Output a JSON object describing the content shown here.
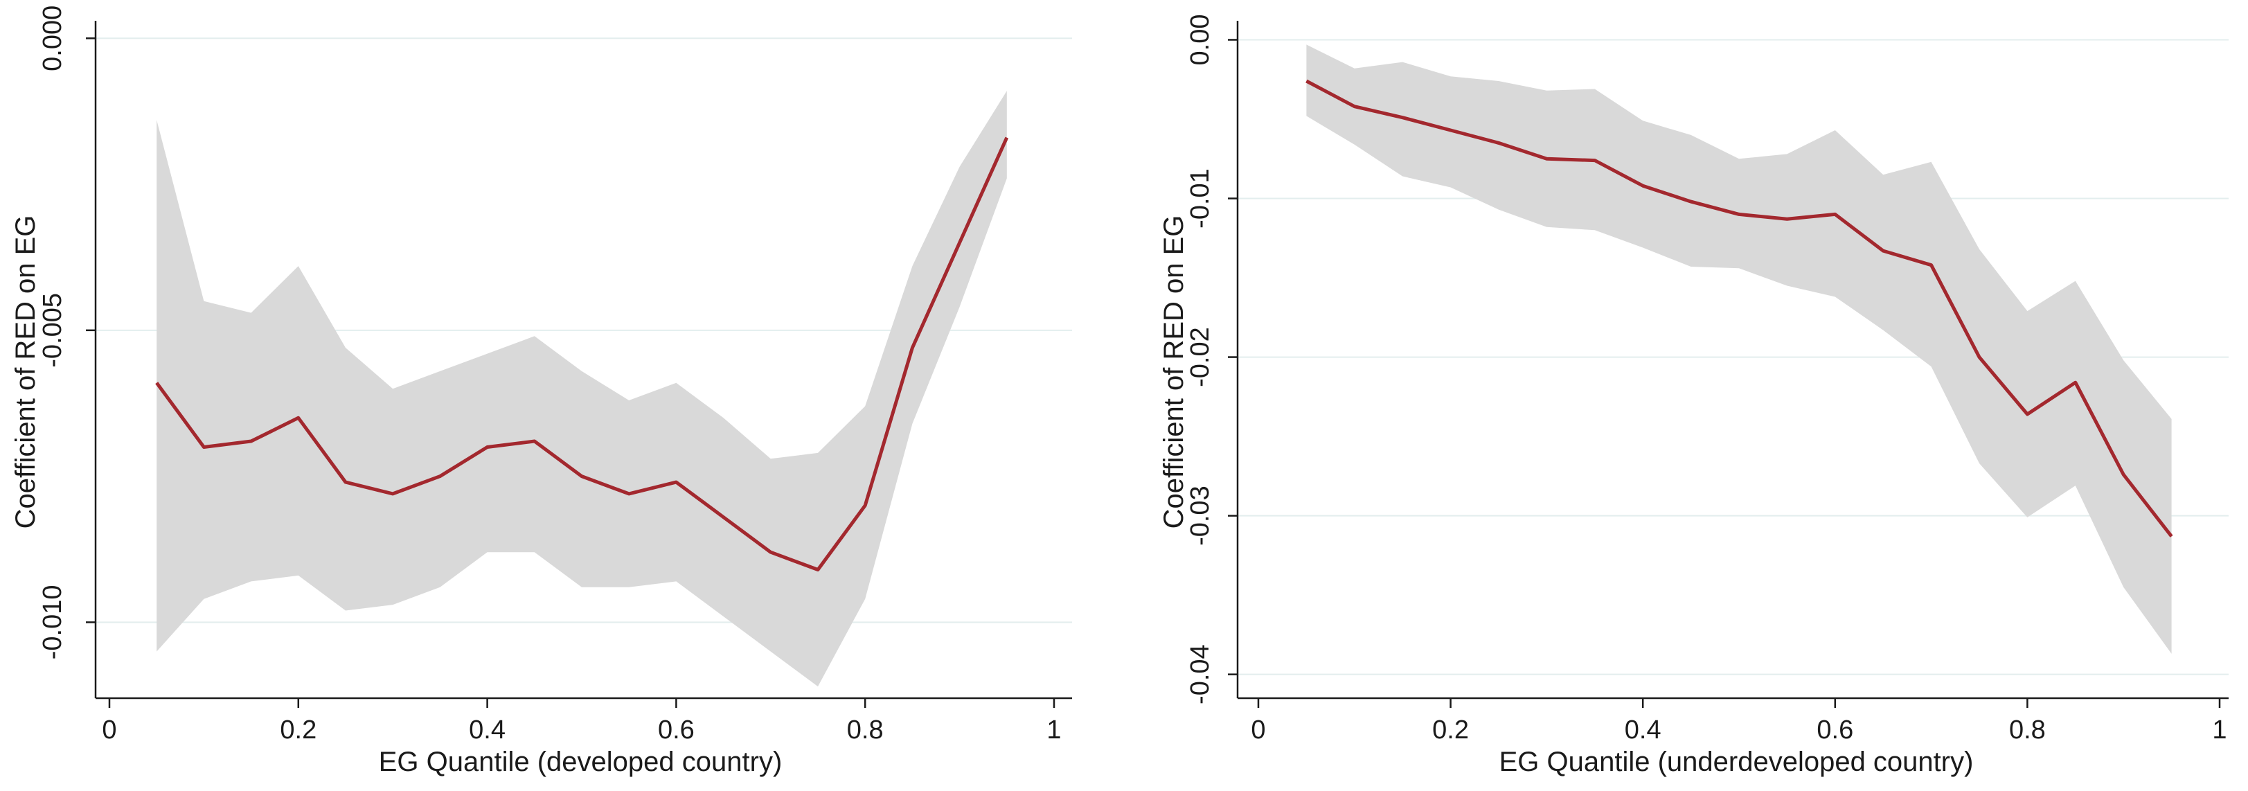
{
  "colors": {
    "line": "#a3282e",
    "band": "#d9d9d9",
    "grid": "#e3eeee",
    "axis": "#1a1a1a"
  },
  "chart_data": [
    {
      "type": "line",
      "title": "",
      "xlabel": "EG Quantile (developed country)",
      "ylabel": "Coefficient of RED on EG",
      "xlim": [
        0,
        1
      ],
      "ylim": [
        -0.0113,
        0.0003
      ],
      "xticks": [
        0,
        0.2,
        0.4,
        0.6,
        0.8,
        1
      ],
      "xtick_labels": [
        "0",
        "0.2",
        "0.4",
        "0.6",
        "0.8",
        "1"
      ],
      "yticks": [
        0,
        -0.005,
        -0.01
      ],
      "ytick_labels": [
        "0.000",
        "-0.005",
        "-0.010"
      ],
      "grid": true,
      "series": [
        {
          "name": "coefficient",
          "x": [
            0.05,
            0.1,
            0.15,
            0.2,
            0.25,
            0.3,
            0.35,
            0.4,
            0.45,
            0.5,
            0.55,
            0.6,
            0.65,
            0.7,
            0.75,
            0.8,
            0.85,
            0.9,
            0.95
          ],
          "values": [
            -0.0059,
            -0.007,
            -0.0069,
            -0.0065,
            -0.0076,
            -0.0078,
            -0.0075,
            -0.007,
            -0.0069,
            -0.0075,
            -0.0078,
            -0.0076,
            -0.0082,
            -0.0088,
            -0.0091,
            -0.008,
            -0.0053,
            -0.0035,
            -0.0017
          ],
          "lower": [
            -0.0105,
            -0.0096,
            -0.0093,
            -0.0092,
            -0.0098,
            -0.0097,
            -0.0094,
            -0.0088,
            -0.0088,
            -0.0094,
            -0.0094,
            -0.0093,
            -0.0099,
            -0.0105,
            -0.0111,
            -0.0096,
            -0.0066,
            -0.0046,
            -0.0024
          ],
          "upper": [
            -0.0014,
            -0.0045,
            -0.0047,
            -0.0039,
            -0.0053,
            -0.006,
            -0.0057,
            -0.0054,
            -0.0051,
            -0.0057,
            -0.0062,
            -0.0059,
            -0.0065,
            -0.0072,
            -0.0071,
            -0.0063,
            -0.0039,
            -0.0022,
            -0.0009
          ]
        }
      ]
    },
    {
      "type": "line",
      "title": "",
      "xlabel": "EG Quantile (underdeveloped country)",
      "ylabel": "Coefficient of  RED on EG",
      "xlim": [
        0,
        1
      ],
      "ylim": [
        -0.0415,
        0.0012
      ],
      "xticks": [
        0,
        0.2,
        0.4,
        0.6,
        0.8,
        1
      ],
      "xtick_labels": [
        "0",
        "0.2",
        "0.4",
        "0.6",
        "0.8",
        "1"
      ],
      "yticks": [
        0,
        -0.01,
        -0.02,
        -0.03,
        -0.04
      ],
      "ytick_labels": [
        "0.00",
        "-0.01",
        "-0.02",
        "-0.03",
        "-0.04"
      ],
      "grid": true,
      "series": [
        {
          "name": "coefficient",
          "x": [
            0.05,
            0.1,
            0.15,
            0.2,
            0.25,
            0.3,
            0.35,
            0.4,
            0.45,
            0.5,
            0.55,
            0.6,
            0.65,
            0.7,
            0.75,
            0.8,
            0.85,
            0.9,
            0.95
          ],
          "values": [
            -0.0026,
            -0.0042,
            -0.0049,
            -0.0057,
            -0.0065,
            -0.0075,
            -0.0076,
            -0.0092,
            -0.0102,
            -0.011,
            -0.0113,
            -0.011,
            -0.0133,
            -0.0142,
            -0.02,
            -0.0236,
            -0.0216,
            -0.0274,
            -0.0313
          ],
          "lower": [
            -0.0048,
            -0.0066,
            -0.0086,
            -0.0093,
            -0.0107,
            -0.0118,
            -0.012,
            -0.0131,
            -0.0143,
            -0.0144,
            -0.0155,
            -0.0162,
            -0.0183,
            -0.0206,
            -0.0267,
            -0.0301,
            -0.0281,
            -0.0345,
            -0.0387
          ],
          "upper": [
            -0.0003,
            -0.0018,
            -0.0014,
            -0.0023,
            -0.0026,
            -0.0032,
            -0.0031,
            -0.0051,
            -0.006,
            -0.0075,
            -0.0072,
            -0.0057,
            -0.0085,
            -0.0077,
            -0.0132,
            -0.0171,
            -0.0152,
            -0.0202,
            -0.0239
          ]
        }
      ]
    }
  ]
}
